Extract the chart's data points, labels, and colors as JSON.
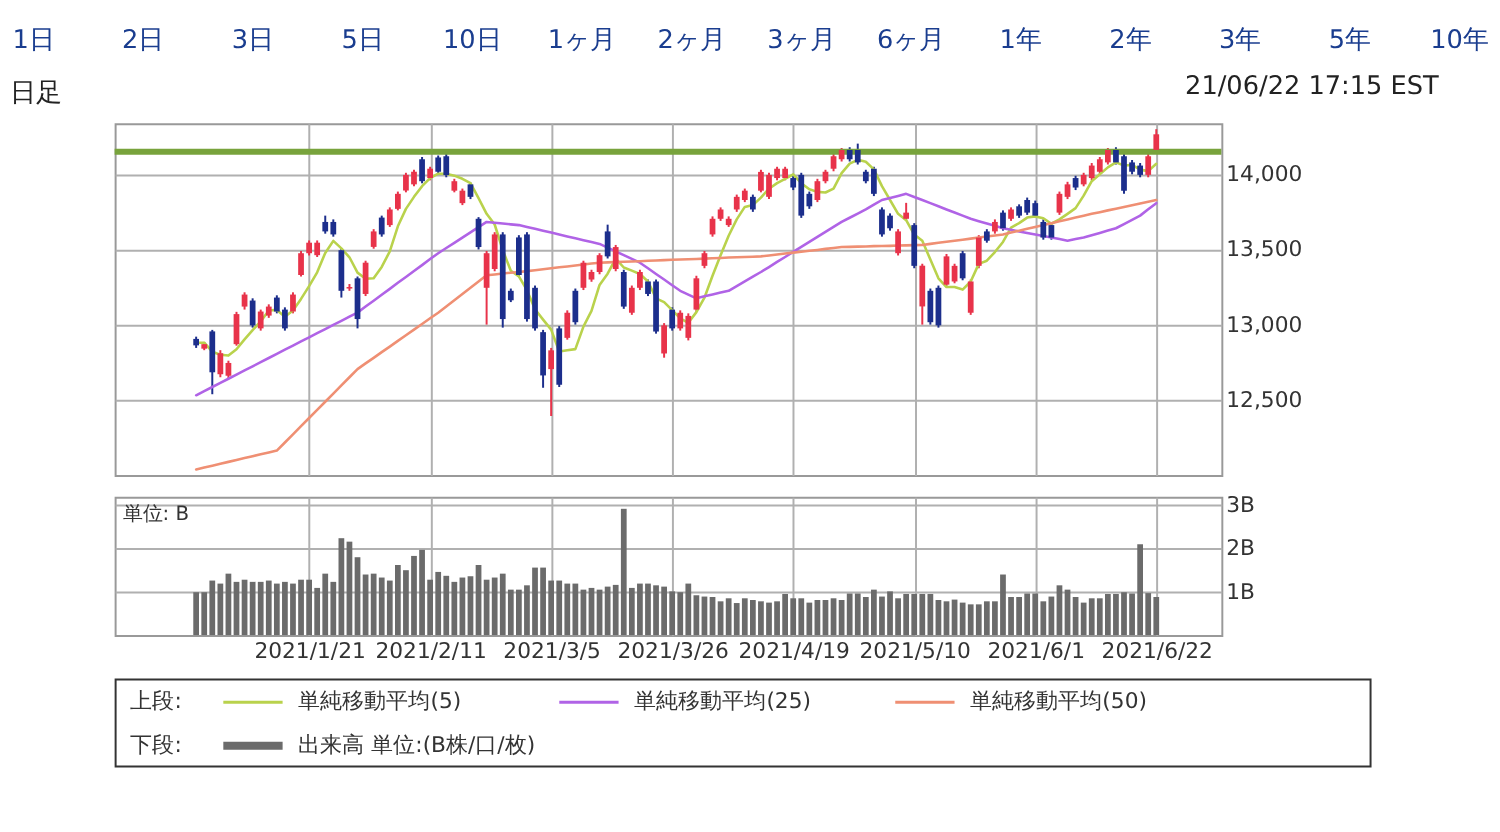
{
  "chart_data": [
    {
      "type": "candlestick",
      "categories": [
        null,
        null,
        null,
        null,
        null,
        null,
        null,
        null,
        null,
        null,
        null,
        null,
        null,
        null,
        "2021/1/21",
        null,
        null,
        null,
        null,
        null,
        null,
        null,
        null,
        null,
        null,
        null,
        null,
        null,
        null,
        "2021/2/11",
        null,
        null,
        null,
        null,
        null,
        null,
        null,
        null,
        null,
        null,
        null,
        null,
        null,
        null,
        "2021/3/5",
        null,
        null,
        null,
        null,
        null,
        null,
        null,
        null,
        null,
        null,
        null,
        null,
        null,
        null,
        "2021/3/26",
        null,
        null,
        null,
        null,
        null,
        null,
        null,
        null,
        null,
        null,
        null,
        null,
        null,
        null,
        "2021/4/19",
        null,
        null,
        null,
        null,
        null,
        null,
        null,
        null,
        null,
        null,
        null,
        null,
        null,
        null,
        "2021/5/10",
        null,
        null,
        null,
        null,
        null,
        null,
        null,
        null,
        null,
        null,
        null,
        null,
        null,
        null,
        "2021/6/1",
        null,
        null,
        null,
        null,
        null,
        null,
        null,
        null,
        null,
        null,
        null,
        null,
        null,
        null,
        "2021/6/22"
      ],
      "ohlc": [
        [
          12905,
          12920,
          12845,
          12862
        ],
        [
          12840,
          12885,
          12830,
          12870
        ],
        [
          12955,
          12965,
          12537,
          12683
        ],
        [
          12670,
          12830,
          12650,
          12810
        ],
        [
          12660,
          12760,
          12640,
          12745
        ],
        [
          12870,
          13085,
          12860,
          13070
        ],
        [
          13120,
          13215,
          13100,
          13200
        ],
        [
          13160,
          13175,
          12980,
          12995
        ],
        [
          12975,
          13100,
          12960,
          13087
        ],
        [
          13060,
          13135,
          13045,
          13120
        ],
        [
          13180,
          13195,
          13075,
          13087
        ],
        [
          13100,
          13115,
          12960,
          12975
        ],
        [
          13087,
          13215,
          13075,
          13200
        ],
        [
          13330,
          13490,
          13320,
          13475
        ],
        [
          13475,
          13560,
          13460,
          13545
        ],
        [
          13462,
          13560,
          13450,
          13545
        ],
        [
          13683,
          13725,
          13605,
          13620
        ],
        [
          13683,
          13700,
          13585,
          13600
        ],
        [
          13495,
          13510,
          13180,
          13225
        ],
        [
          13240,
          13270,
          13225,
          13250
        ],
        [
          13308,
          13320,
          12975,
          13037
        ],
        [
          13204,
          13425,
          13190,
          13412
        ],
        [
          13517,
          13635,
          13505,
          13620
        ],
        [
          13712,
          13725,
          13585,
          13600
        ],
        [
          13662,
          13780,
          13650,
          13766
        ],
        [
          13770,
          13885,
          13760,
          13870
        ],
        [
          13892,
          14010,
          13880,
          13996
        ],
        [
          13933,
          14030,
          13920,
          14017
        ],
        [
          14100,
          14115,
          13940,
          13954
        ],
        [
          13975,
          14050,
          13960,
          14037
        ],
        [
          14112,
          14125,
          14000,
          14017
        ],
        [
          14120,
          14135,
          13980,
          13995
        ],
        [
          13891,
          13970,
          13880,
          13954
        ],
        [
          13808,
          13905,
          13795,
          13891
        ],
        [
          13933,
          13945,
          13835,
          13850
        ],
        [
          13704,
          13715,
          13500,
          13516
        ],
        [
          13245,
          13490,
          13000,
          13475
        ],
        [
          13370,
          13615,
          13355,
          13600
        ],
        [
          13600,
          13615,
          12980,
          13037
        ],
        [
          13225,
          13240,
          13150,
          13162
        ],
        [
          13580,
          13595,
          13315,
          13330
        ],
        [
          13600,
          13615,
          13020,
          13037
        ],
        [
          13245,
          13260,
          12960,
          12975
        ],
        [
          12950,
          12965,
          12580,
          12662
        ],
        [
          12704,
          12845,
          12392,
          12829
        ],
        [
          12975,
          12990,
          12585,
          12600
        ],
        [
          12912,
          13095,
          12900,
          13079
        ],
        [
          13225,
          13240,
          13000,
          13016
        ],
        [
          13245,
          13425,
          13230,
          13412
        ],
        [
          13300,
          13365,
          13285,
          13350
        ],
        [
          13350,
          13475,
          13335,
          13462
        ],
        [
          13620,
          13665,
          13440,
          13454
        ],
        [
          13370,
          13530,
          13355,
          13516
        ],
        [
          13350,
          13365,
          13105,
          13120
        ],
        [
          13079,
          13260,
          13065,
          13245
        ],
        [
          13245,
          13365,
          13230,
          13350
        ],
        [
          13287,
          13300,
          13190,
          13204
        ],
        [
          13287,
          13300,
          12940,
          12954
        ],
        [
          12808,
          13010,
          12780,
          12995
        ],
        [
          13100,
          13115,
          12960,
          12975
        ],
        [
          12975,
          13095,
          12960,
          13079
        ],
        [
          12912,
          13075,
          12895,
          13058
        ],
        [
          13100,
          13325,
          13085,
          13308
        ],
        [
          13391,
          13490,
          13375,
          13475
        ],
        [
          13600,
          13720,
          13585,
          13704
        ],
        [
          13704,
          13780,
          13690,
          13766
        ],
        [
          13662,
          13720,
          13650,
          13704
        ],
        [
          13766,
          13865,
          13750,
          13850
        ],
        [
          13829,
          13905,
          13815,
          13891
        ],
        [
          13850,
          13865,
          13750,
          13766
        ],
        [
          13891,
          14030,
          13880,
          14016
        ],
        [
          13850,
          14010,
          13835,
          13996
        ],
        [
          13975,
          14050,
          13960,
          14037
        ],
        [
          13975,
          14050,
          13960,
          14037
        ],
        [
          13975,
          13990,
          13895,
          13912
        ],
        [
          13996,
          14010,
          13710,
          13725
        ],
        [
          13870,
          13885,
          13770,
          13787
        ],
        [
          13829,
          13970,
          13815,
          13954
        ],
        [
          13954,
          14030,
          13940,
          14017
        ],
        [
          14037,
          14135,
          14020,
          14120
        ],
        [
          14100,
          14175,
          14085,
          14162
        ],
        [
          14162,
          14180,
          14085,
          14100
        ],
        [
          14162,
          14204,
          14065,
          14079
        ],
        [
          14017,
          14030,
          13940,
          13954
        ],
        [
          14037,
          14050,
          13855,
          13870
        ],
        [
          13766,
          13780,
          13585,
          13600
        ],
        [
          13725,
          13740,
          13625,
          13641
        ],
        [
          13475,
          13635,
          13460,
          13620
        ],
        [
          13704,
          13810,
          13690,
          13745
        ],
        [
          13662,
          13675,
          13375,
          13391
        ],
        [
          13121,
          13405,
          13000,
          13392
        ],
        [
          13225,
          13240,
          13000,
          13016
        ],
        [
          13245,
          13260,
          12980,
          12995
        ],
        [
          13266,
          13470,
          13250,
          13454
        ],
        [
          13287,
          13405,
          13275,
          13391
        ],
        [
          13475,
          13490,
          13295,
          13308
        ],
        [
          13079,
          13300,
          13065,
          13287
        ],
        [
          13391,
          13595,
          13375,
          13579
        ],
        [
          13620,
          13635,
          13545,
          13558
        ],
        [
          13620,
          13700,
          13605,
          13683
        ],
        [
          13745,
          13760,
          13625,
          13641
        ],
        [
          13704,
          13780,
          13690,
          13766
        ],
        [
          13787,
          13800,
          13710,
          13725
        ],
        [
          13829,
          13845,
          13730,
          13745
        ],
        [
          13808,
          13825,
          13710,
          13725
        ],
        [
          13683,
          13700,
          13565,
          13579
        ],
        [
          13662,
          13680,
          13565,
          13579
        ],
        [
          13745,
          13885,
          13730,
          13870
        ],
        [
          13850,
          13950,
          13835,
          13933
        ],
        [
          13975,
          13990,
          13895,
          13912
        ],
        [
          13933,
          14010,
          13920,
          13996
        ],
        [
          13975,
          14075,
          13960,
          14058
        ],
        [
          14017,
          14115,
          14000,
          14100
        ],
        [
          14079,
          14175,
          14065,
          14162
        ],
        [
          14162,
          14180,
          14065,
          14079
        ],
        [
          14120,
          14135,
          13870,
          13891
        ],
        [
          14079,
          14095,
          14000,
          14017
        ],
        [
          14058,
          14075,
          13980,
          13996
        ],
        [
          13996,
          14135,
          13980,
          14120
        ],
        [
          14162,
          14300,
          14150,
          14266
        ]
      ],
      "colors": [
        "#1c2e8c",
        "#e8334a",
        "#1c2e8c",
        "#e8334a",
        "#e8334a",
        "#e8334a",
        "#e8334a",
        "#1c2e8c",
        "#e8334a",
        "#e8334a",
        "#1c2e8c",
        "#1c2e8c",
        "#e8334a",
        "#e8334a",
        "#e8334a",
        "#e8334a",
        "#1c2e8c",
        "#1c2e8c",
        "#1c2e8c",
        "#e8334a",
        "#1c2e8c",
        "#e8334a",
        "#e8334a",
        "#1c2e8c",
        "#e8334a",
        "#e8334a",
        "#e8334a",
        "#e8334a",
        "#1c2e8c",
        "#e8334a",
        "#1c2e8c",
        "#1c2e8c",
        "#e8334a",
        "#e8334a",
        "#1c2e8c",
        "#1c2e8c",
        "#e8334a",
        "#e8334a",
        "#1c2e8c",
        "#1c2e8c",
        "#1c2e8c",
        "#1c2e8c",
        "#1c2e8c",
        "#1c2e8c",
        "#e8334a",
        "#1c2e8c",
        "#e8334a",
        "#1c2e8c",
        "#e8334a",
        "#e8334a",
        "#e8334a",
        "#1c2e8c",
        "#e8334a",
        "#1c2e8c",
        "#e8334a",
        "#e8334a",
        "#1c2e8c",
        "#1c2e8c",
        "#e8334a",
        "#1c2e8c",
        "#e8334a",
        "#e8334a",
        "#e8334a",
        "#e8334a",
        "#e8334a",
        "#e8334a",
        "#e8334a",
        "#e8334a",
        "#e8334a",
        "#1c2e8c",
        "#e8334a",
        "#e8334a",
        "#e8334a",
        "#e8334a",
        "#1c2e8c",
        "#1c2e8c",
        "#1c2e8c",
        "#e8334a",
        "#e8334a",
        "#e8334a",
        "#e8334a",
        "#1c2e8c",
        "#1c2e8c",
        "#1c2e8c",
        "#1c2e8c",
        "#1c2e8c",
        "#1c2e8c",
        "#e8334a",
        "#e8334a",
        "#1c2e8c",
        "#e8334a",
        "#1c2e8c",
        "#1c2e8c",
        "#e8334a",
        "#e8334a",
        "#1c2e8c",
        "#e8334a",
        "#e8334a",
        "#1c2e8c",
        "#e8334a",
        "#1c2e8c",
        "#e8334a",
        "#1c2e8c",
        "#1c2e8c",
        "#1c2e8c",
        "#1c2e8c",
        "#1c2e8c",
        "#e8334a",
        "#e8334a",
        "#1c2e8c",
        "#e8334a",
        "#e8334a",
        "#e8334a",
        "#e8334a",
        "#1c2e8c",
        "#1c2e8c",
        "#1c2e8c",
        "#1c2e8c",
        "#e8334a",
        "#e8334a"
      ],
      "series": [
        {
          "name": "単純移動平均(5)",
          "type": "line",
          "color": "#b9d24c",
          "values": [
            12880,
            12880,
            12820,
            12800,
            12794,
            12836,
            12902,
            12964,
            13021,
            13094,
            13098,
            13053,
            13094,
            13171,
            13256,
            13348,
            13477,
            13557,
            13507,
            13448,
            13346,
            13305,
            13309,
            13384,
            13487,
            13654,
            13770,
            13850,
            13921,
            13975,
            14004,
            14004,
            13991,
            13970,
            13941,
            13841,
            13737,
            13666,
            13496,
            13358,
            13321,
            13229,
            13102,
            13033,
            12967,
            12821,
            12829,
            12837,
            12987,
            13091,
            13264,
            13339,
            13439,
            13380,
            13359,
            13337,
            13287,
            13175,
            13150,
            13096,
            13041,
            13012,
            13083,
            13179,
            13325,
            13462,
            13591,
            13700,
            13783,
            13795,
            13845,
            13904,
            13941,
            13970,
            14000,
            13941,
            13900,
            13883,
            13879,
            13905,
            14008,
            14071,
            14096,
            14083,
            14033,
            13921,
            13829,
            13737,
            13695,
            13599,
            13558,
            13433,
            13308,
            13250,
            13250,
            13233,
            13287,
            13404,
            13425,
            13483,
            13550,
            13645,
            13675,
            13712,
            13720,
            13708,
            13671,
            13700,
            13737,
            13775,
            13858,
            13954,
            14000,
            14046,
            14079,
            14058,
            14062,
            14031,
            14021,
            14070
          ]
        },
        {
          "name": "単純移動平均(25)",
          "type": "line",
          "color": "#b063e6",
          "values": [
            12530,
            12558,
            12585,
            12613,
            12640,
            12668,
            12695,
            12723,
            12750,
            12778,
            12805,
            12833,
            12860,
            12888,
            12915,
            12943,
            12970,
            12998,
            13025,
            13053,
            13080,
            13120,
            13159,
            13199,
            13238,
            13278,
            13317,
            13357,
            13396,
            13436,
            13475,
            13510,
            13544,
            13579,
            13614,
            13648,
            13683,
            13678,
            13673,
            13667,
            13662,
            13650,
            13637,
            13625,
            13612,
            13600,
            13587,
            13575,
            13562,
            13550,
            13537,
            13512,
            13487,
            13462,
            13437,
            13412,
            13375,
            13337,
            13300,
            13262,
            13225,
            13200,
            13175,
            13188,
            13200,
            13213,
            13225,
            13256,
            13287,
            13319,
            13350,
            13383,
            13417,
            13450,
            13484,
            13517,
            13550,
            13584,
            13617,
            13650,
            13683,
            13711,
            13738,
            13766,
            13798,
            13829,
            13843,
            13856,
            13870,
            13849,
            13829,
            13808,
            13787,
            13766,
            13746,
            13725,
            13704,
            13688,
            13672,
            13657,
            13641,
            13631,
            13620,
            13610,
            13600,
            13590,
            13579,
            13569,
            13558,
            13569,
            13579,
            13595,
            13610,
            13626,
            13641,
            13669,
            13697,
            13725,
            13767,
            13808
          ]
        },
        {
          "name": "単純移動平均(50)",
          "type": "line",
          "color": "#ef8f73",
          "values": [
            12037,
            12050,
            12062,
            12075,
            12087,
            12100,
            12112,
            12125,
            12137,
            12150,
            12162,
            12216,
            12270,
            12325,
            12379,
            12433,
            12487,
            12541,
            12596,
            12650,
            12704,
            12742,
            12779,
            12817,
            12854,
            12892,
            12929,
            12967,
            13004,
            13042,
            13079,
            13121,
            13162,
            13204,
            13246,
            13287,
            13329,
            13334,
            13340,
            13345,
            13350,
            13356,
            13362,
            13369,
            13375,
            13381,
            13387,
            13393,
            13400,
            13406,
            13412,
            13414,
            13416,
            13418,
            13420,
            13422,
            13425,
            13427,
            13429,
            13431,
            13433,
            13435,
            13437,
            13439,
            13441,
            13443,
            13446,
            13448,
            13450,
            13452,
            13454,
            13460,
            13466,
            13473,
            13479,
            13485,
            13491,
            13497,
            13504,
            13510,
            13516,
            13517,
            13519,
            13520,
            13522,
            13523,
            13524,
            13526,
            13527,
            13529,
            13530,
            13537,
            13544,
            13551,
            13558,
            13565,
            13572,
            13579,
            13586,
            13593,
            13600,
            13612,
            13625,
            13637,
            13650,
            13662,
            13675,
            13687,
            13700,
            13712,
            13725,
            13737,
            13748,
            13760,
            13771,
            13783,
            13794,
            13806,
            13817,
            13829
          ]
        }
      ],
      "ylim": [
        12000,
        14340
      ],
      "yticks": [
        {
          "value": 12500,
          "label": "12,500"
        },
        {
          "value": 13000,
          "label": "13,000"
        },
        {
          "value": 13500,
          "label": "13,500"
        },
        {
          "value": 14000,
          "label": "14,000"
        }
      ],
      "ref_lines": [
        {
          "axis": "y",
          "value": 14150,
          "color": "#78a33c"
        }
      ],
      "grid": true,
      "tick_labels": "y",
      "legend": "bottom",
      "annotations": [
        "1日",
        "2日",
        "3日",
        "5日",
        "10日",
        "1ヶ月",
        "2ヶ月",
        "3ヶ月",
        "6ヶ月",
        "1年",
        "2年",
        "3年",
        "5年",
        "10年",
        "日足",
        "21/06/22 17:15 EST"
      ]
    },
    {
      "type": "bar",
      "categories": [
        null,
        null,
        null,
        null,
        null,
        null,
        null,
        null,
        null,
        null,
        null,
        null,
        null,
        null,
        "2021/1/21",
        null,
        null,
        null,
        null,
        null,
        null,
        null,
        null,
        null,
        null,
        null,
        null,
        null,
        null,
        "2021/2/11",
        null,
        null,
        null,
        null,
        null,
        null,
        null,
        null,
        null,
        null,
        null,
        null,
        null,
        null,
        "2021/3/5",
        null,
        null,
        null,
        null,
        null,
        null,
        null,
        null,
        null,
        null,
        null,
        null,
        null,
        null,
        "2021/3/26",
        null,
        null,
        null,
        null,
        null,
        null,
        null,
        null,
        null,
        null,
        null,
        null,
        null,
        null,
        "2021/4/19",
        null,
        null,
        null,
        null,
        null,
        null,
        null,
        null,
        null,
        null,
        null,
        null,
        null,
        null,
        "2021/5/10",
        null,
        null,
        null,
        null,
        null,
        null,
        null,
        null,
        null,
        null,
        null,
        null,
        null,
        null,
        "2021/6/1",
        null,
        null,
        null,
        null,
        null,
        null,
        null,
        null,
        null,
        null,
        null,
        null,
        null,
        null,
        "2021/6/22"
      ],
      "series": [
        {
          "name": "出来高 単位:(B株/口/枚)",
          "color": "#6b6b6b",
          "values": [
            0.99,
            0.99,
            1.26,
            1.19,
            1.42,
            1.23,
            1.28,
            1.23,
            1.23,
            1.26,
            1.19,
            1.23,
            1.19,
            1.28,
            1.28,
            1.09,
            1.42,
            1.23,
            2.24,
            2.16,
            1.8,
            1.4,
            1.42,
            1.33,
            1.26,
            1.62,
            1.5,
            1.83,
            1.97,
            1.28,
            1.46,
            1.37,
            1.23,
            1.33,
            1.36,
            1.62,
            1.28,
            1.33,
            1.42,
            1.05,
            1.05,
            1.15,
            1.56,
            1.56,
            1.26,
            1.26,
            1.19,
            1.19,
            1.05,
            1.09,
            1.05,
            1.12,
            1.16,
            2.92,
            1.09,
            1.19,
            1.19,
            1.15,
            1.12,
            1.01,
            0.99,
            1.19,
            0.92,
            0.89,
            0.88,
            0.78,
            0.85,
            0.74,
            0.85,
            0.81,
            0.78,
            0.75,
            0.78,
            0.95,
            0.85,
            0.85,
            0.75,
            0.81,
            0.81,
            0.85,
            0.81,
            0.96,
            0.96,
            0.88,
            1.05,
            0.89,
            1.01,
            0.85,
            0.95,
            0.95,
            0.95,
            0.95,
            0.81,
            0.78,
            0.82,
            0.75,
            0.71,
            0.71,
            0.78,
            0.78,
            1.4,
            0.88,
            0.88,
            0.96,
            0.96,
            0.78,
            0.89,
            1.15,
            1.05,
            0.88,
            0.75,
            0.85,
            0.85,
            0.95,
            0.95,
            0.99,
            0.96,
            2.1,
            0.97,
            0.88
          ]
        }
      ],
      "ylim": [
        0,
        3.2
      ],
      "yticks": [
        {
          "value": 1,
          "label": "1B"
        },
        {
          "value": 2,
          "label": "2B"
        },
        {
          "value": 3,
          "label": "3B"
        }
      ],
      "grid": true,
      "legend": "bottom",
      "annotations": [
        "単位: B",
        "上段:",
        "下段:"
      ]
    }
  ]
}
